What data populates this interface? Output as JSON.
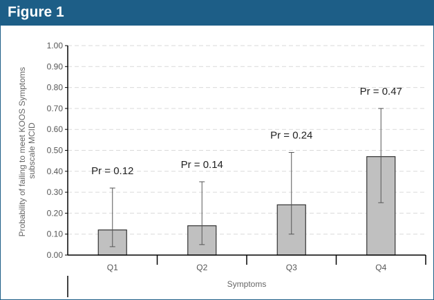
{
  "figure": {
    "title": "Figure 1"
  },
  "colors": {
    "header": "#1d5e87",
    "bar_fill": "#c0c0c0",
    "bar_stroke": "#333333",
    "grid": "#d9d9d9"
  },
  "chart_data": {
    "type": "bar",
    "categories": [
      "Q1",
      "Q2",
      "Q3",
      "Q4"
    ],
    "values": [
      0.12,
      0.14,
      0.24,
      0.47
    ],
    "error_low": [
      0.04,
      0.05,
      0.1,
      0.25
    ],
    "error_high": [
      0.32,
      0.35,
      0.49,
      0.7
    ],
    "annotations": [
      "Pr = 0.12",
      "Pr = 0.14",
      "Pr = 0.24",
      "Pr = 0.47"
    ],
    "yticks": [
      "0.00",
      "0.10",
      "0.20",
      "0.30",
      "0.40",
      "0.50",
      "0.60",
      "0.70",
      "0.80",
      "0.90",
      "1.00"
    ],
    "ylim": [
      0,
      1
    ],
    "xlabel": "Symptoms",
    "ylabel_lines": [
      "Probability of failing to meet KOOS Symptoms",
      "subscale MCID"
    ],
    "grid": "horizontal-dashed",
    "legend": "none"
  }
}
